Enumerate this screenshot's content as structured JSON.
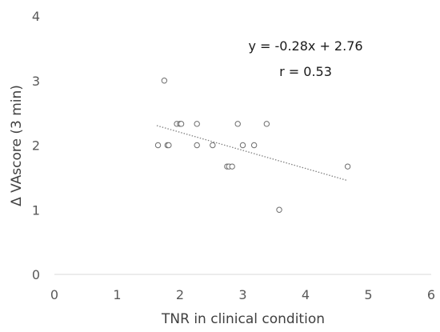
{
  "chart_data": {
    "type": "scatter",
    "xlabel": "TNR in clinical condition",
    "ylabel": "Δ VAscore (3 min)",
    "xlim": [
      0,
      6
    ],
    "ylim": [
      0,
      4
    ],
    "xticks": [
      "0",
      "1",
      "2",
      "3",
      "4",
      "5",
      "6"
    ],
    "yticks": [
      "0",
      "1",
      "2",
      "3",
      "4"
    ],
    "grid": false,
    "points": [
      {
        "x": 1.75,
        "y": 3.0
      },
      {
        "x": 1.65,
        "y": 2.0
      },
      {
        "x": 1.8,
        "y": 2.0
      },
      {
        "x": 1.82,
        "y": 2.0
      },
      {
        "x": 1.95,
        "y": 2.33
      },
      {
        "x": 2.0,
        "y": 2.33
      },
      {
        "x": 2.02,
        "y": 2.33
      },
      {
        "x": 2.27,
        "y": 2.33
      },
      {
        "x": 2.27,
        "y": 2.0
      },
      {
        "x": 2.52,
        "y": 2.0
      },
      {
        "x": 2.75,
        "y": 1.67
      },
      {
        "x": 2.78,
        "y": 1.67
      },
      {
        "x": 2.83,
        "y": 1.67
      },
      {
        "x": 2.92,
        "y": 2.33
      },
      {
        "x": 3.0,
        "y": 2.0
      },
      {
        "x": 3.18,
        "y": 2.0
      },
      {
        "x": 3.38,
        "y": 2.33
      },
      {
        "x": 3.58,
        "y": 1.0
      },
      {
        "x": 4.67,
        "y": 1.67
      }
    ],
    "trendline": {
      "style": "dotted",
      "x_range": [
        1.63,
        4.67
      ],
      "slope": -0.28,
      "intercept": 2.76
    },
    "annotations": [
      "y = -0.28x + 2.76",
      "r = 0.53"
    ]
  }
}
